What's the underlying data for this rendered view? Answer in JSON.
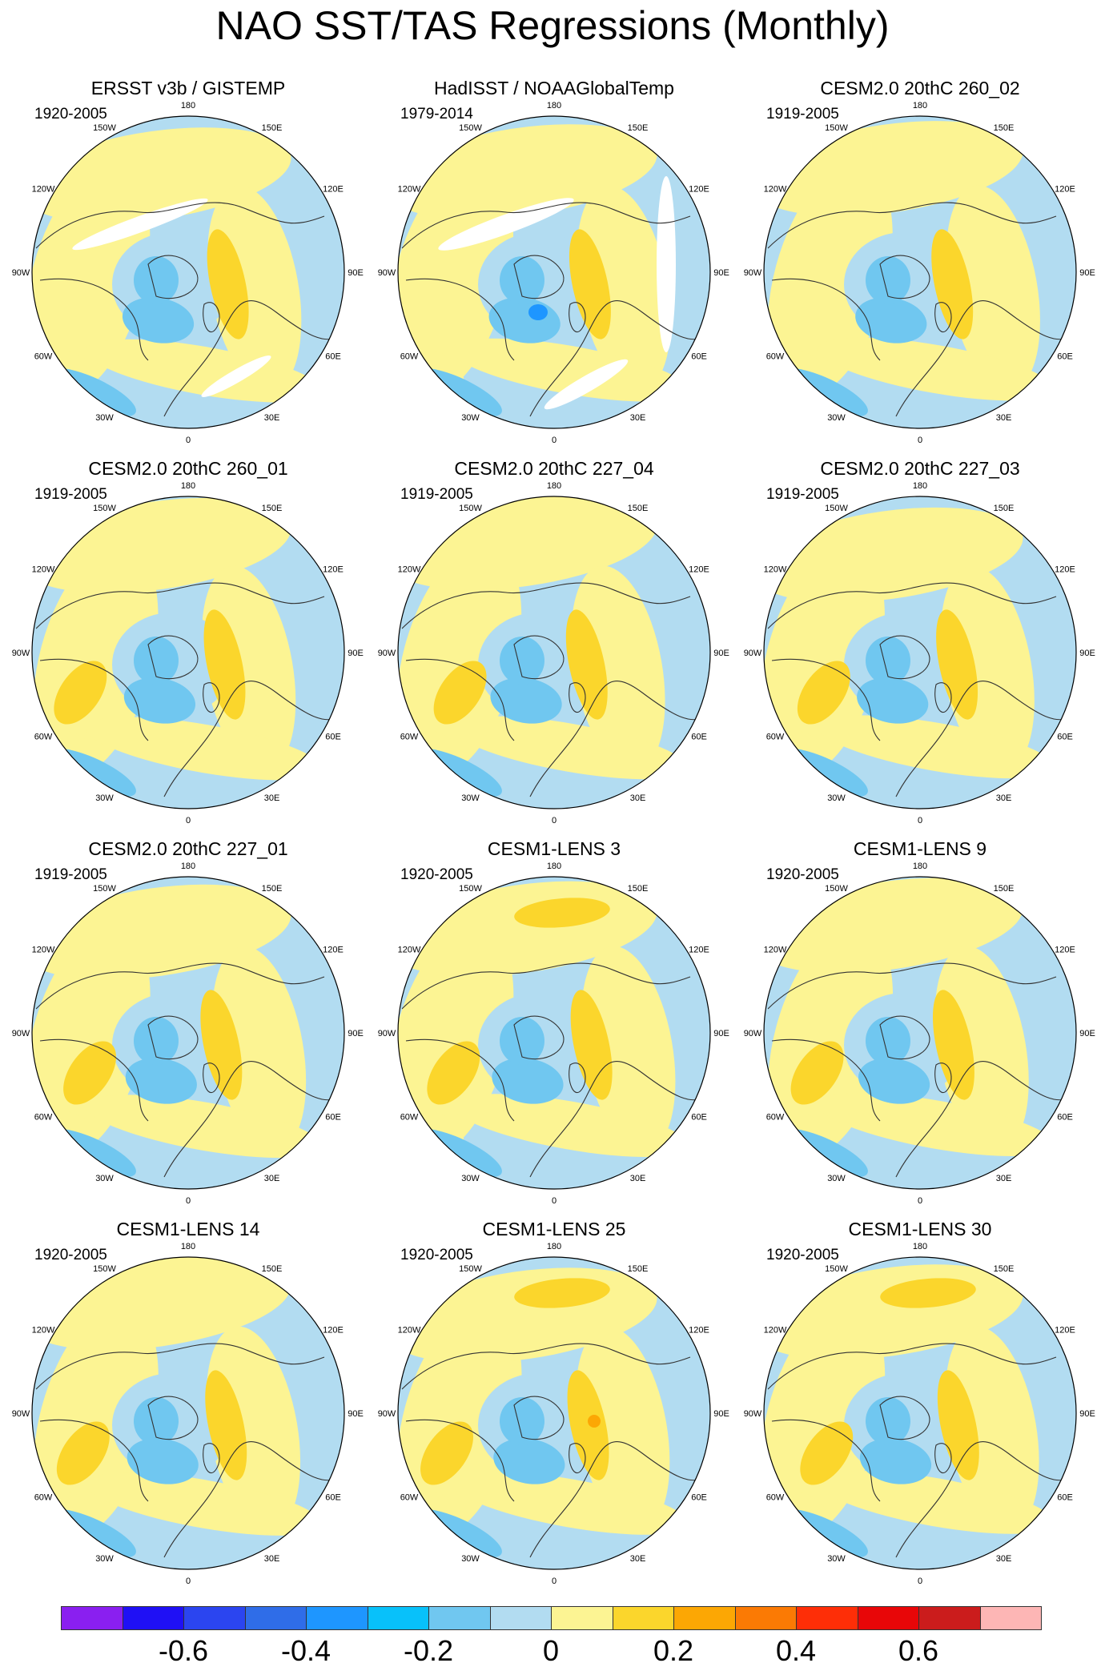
{
  "title": "NAO SST/TAS Regressions (Monthly)",
  "lon_labels": [
    "180",
    "150E",
    "120E",
    "90E",
    "60E",
    "30E",
    "0",
    "30W",
    "60W",
    "90W",
    "120W",
    "150W"
  ],
  "panels": [
    {
      "title": "ERSST v3b / GISTEMP",
      "years": "1920-2005"
    },
    {
      "title": "HadISST / NOAAGlobalTemp",
      "years": "1979-2014"
    },
    {
      "title": "CESM2.0 20thC 260_02",
      "years": "1919-2005"
    },
    {
      "title": "CESM2.0 20thC 260_01",
      "years": "1919-2005"
    },
    {
      "title": "CESM2.0 20thC 227_04",
      "years": "1919-2005"
    },
    {
      "title": "CESM2.0 20thC 227_03",
      "years": "1919-2005"
    },
    {
      "title": "CESM2.0 20thC 227_01",
      "years": "1919-2005"
    },
    {
      "title": "CESM1-LENS 3",
      "years": "1920-2005"
    },
    {
      "title": "CESM1-LENS 9",
      "years": "1920-2005"
    },
    {
      "title": "CESM1-LENS 14",
      "years": "1920-2005"
    },
    {
      "title": "CESM1-LENS 25",
      "years": "1920-2005"
    },
    {
      "title": "CESM1-LENS 30",
      "years": "1920-2005"
    }
  ],
  "colorbar": {
    "colors": [
      "#8a1ff0",
      "#1f10f5",
      "#2b45f0",
      "#2f6de8",
      "#1e96ff",
      "#08c1fa",
      "#70c7f0",
      "#b2dcf1",
      "#fcf493",
      "#fbd62c",
      "#fca704",
      "#fb7a04",
      "#fe2e07",
      "#e80608",
      "#cb1c1c",
      "#fdb6b5"
    ],
    "labels": [
      {
        "text": "-0.6",
        "index": 2
      },
      {
        "text": "-0.4",
        "index": 4
      },
      {
        "text": "-0.2",
        "index": 6
      },
      {
        "text": "0",
        "index": 8
      },
      {
        "text": "0.2",
        "index": 10
      },
      {
        "text": "0.4",
        "index": 12
      },
      {
        "text": "0.6",
        "index": 14
      }
    ]
  },
  "map_colors": {
    "neg_weak": "#b2dcf1",
    "neg_mid": "#70c7f0",
    "neg_strong": "#1e96ff",
    "pos_weak": "#fcf493",
    "pos_mid": "#fbd62c",
    "pos_strong": "#fca704",
    "missing": "#ffffff"
  }
}
